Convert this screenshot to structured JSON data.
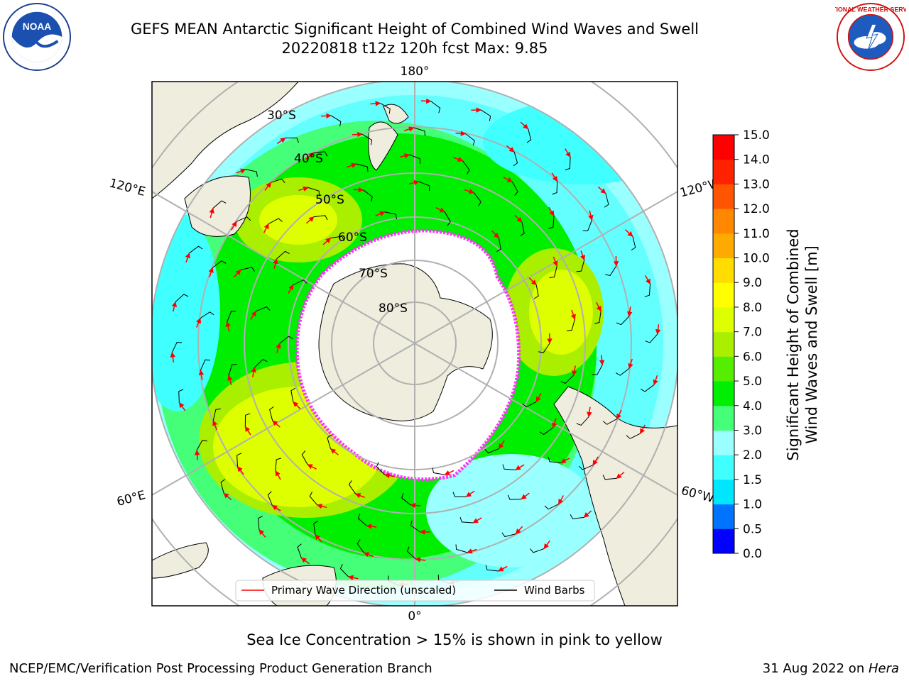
{
  "title": {
    "line1": "GEFS MEAN Antarctic Significant Height of Combined Wind Waves and Swell",
    "line2": "20220818 t12z 120h fcst   Max: 9.85"
  },
  "logos": {
    "left": {
      "name": "noaa-logo",
      "text": "NOAA"
    },
    "right": {
      "name": "nws-logo",
      "text": "NATIONAL WEATHER SERVICE"
    }
  },
  "map": {
    "projection": "south-polar-stereographic",
    "lon_labels": {
      "top": "180°",
      "bottom": "0°",
      "left_upper": "120°E",
      "right_upper": "120°W",
      "left_lower": "60°E",
      "right_lower": "60°W"
    },
    "lat_labels": [
      "30°S",
      "40°S",
      "50°S",
      "60°S",
      "70°S",
      "80°S"
    ],
    "colors": {
      "land": "#efedde",
      "ice_edge": "#ff33ff",
      "grid": "#b0b0b0",
      "arrow": "#ff0000",
      "barb": "#000000"
    }
  },
  "legend": {
    "primary_wave": "Primary Wave Direction (unscaled)",
    "wind_barbs": "Wind Barbs"
  },
  "colorbar": {
    "label_line1": "Significant Height of Combined",
    "label_line2": "Wind Waves and Swell [m]",
    "ticks": [
      "0.0",
      "0.5",
      "1.0",
      "1.5",
      "2.0",
      "3.0",
      "4.0",
      "5.0",
      "6.0",
      "7.0",
      "8.0",
      "9.0",
      "10.0",
      "11.0",
      "12.0",
      "13.0",
      "14.0",
      "15.0"
    ],
    "colors": [
      "#0000ff",
      "#0073ff",
      "#00e6ff",
      "#40ffff",
      "#99ffff",
      "#44ff77",
      "#00ee00",
      "#55ee00",
      "#aaee00",
      "#ddff00",
      "#ffff00",
      "#ffdd00",
      "#ffaa00",
      "#ff8800",
      "#ff5500",
      "#ff2200",
      "#ff0000"
    ]
  },
  "footer": {
    "sea_ice": "Sea Ice Concentration > 15% is shown in pink to yellow",
    "credit": "NCEP/EMC/Verification Post Processing Product Generation Branch",
    "date": "31 Aug 2022 on ",
    "machine": "Hera"
  }
}
